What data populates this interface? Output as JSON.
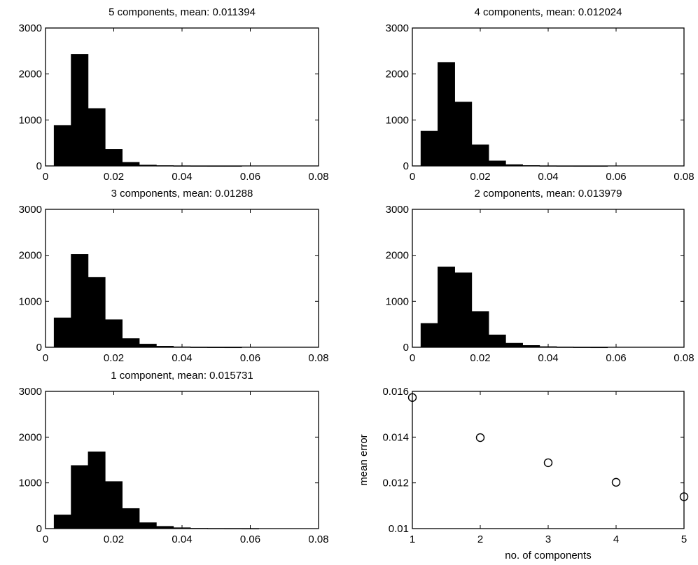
{
  "chart_data": [
    {
      "type": "bar",
      "title": "5 components, mean: 0.011394",
      "xlim": [
        0,
        0.08
      ],
      "ylim": [
        0,
        3000
      ],
      "xticks": [
        0,
        0.02,
        0.04,
        0.06,
        0.08
      ],
      "xtick_labels": [
        "0",
        "0.02",
        "0.04",
        "0.06",
        "0.08"
      ],
      "yticks": [
        0,
        1000,
        2000,
        3000
      ],
      "ytick_labels": [
        "0",
        "1000",
        "2000",
        "3000"
      ],
      "bin_width": 0.005,
      "bin_centers": [
        0.005,
        0.01,
        0.015,
        0.02,
        0.025,
        0.03,
        0.035,
        0.04,
        0.045,
        0.05,
        0.055,
        0.06,
        0.065,
        0.07,
        0.075
      ],
      "values": [
        880,
        2430,
        1250,
        360,
        80,
        20,
        8,
        4,
        2,
        1,
        1,
        0,
        0,
        0,
        0
      ]
    },
    {
      "type": "bar",
      "title": "4 components, mean: 0.012024",
      "xlim": [
        0,
        0.08
      ],
      "ylim": [
        0,
        3000
      ],
      "xticks": [
        0,
        0.02,
        0.04,
        0.06,
        0.08
      ],
      "xtick_labels": [
        "0",
        "0.02",
        "0.04",
        "0.06",
        "0.08"
      ],
      "yticks": [
        0,
        1000,
        2000,
        3000
      ],
      "ytick_labels": [
        "0",
        "1000",
        "2000",
        "3000"
      ],
      "bin_width": 0.005,
      "bin_centers": [
        0.005,
        0.01,
        0.015,
        0.02,
        0.025,
        0.03,
        0.035,
        0.04,
        0.045,
        0.05,
        0.055,
        0.06,
        0.065,
        0.07,
        0.075
      ],
      "values": [
        760,
        2250,
        1390,
        460,
        110,
        30,
        10,
        4,
        2,
        1,
        1,
        0,
        0,
        0,
        0
      ]
    },
    {
      "type": "bar",
      "title": "3 components, mean: 0.01288",
      "xlim": [
        0,
        0.08
      ],
      "ylim": [
        0,
        3000
      ],
      "xticks": [
        0,
        0.02,
        0.04,
        0.06,
        0.08
      ],
      "xtick_labels": [
        "0",
        "0.02",
        "0.04",
        "0.06",
        "0.08"
      ],
      "yticks": [
        0,
        1000,
        2000,
        3000
      ],
      "ytick_labels": [
        "0",
        "1000",
        "2000",
        "3000"
      ],
      "bin_width": 0.005,
      "bin_centers": [
        0.005,
        0.01,
        0.015,
        0.02,
        0.025,
        0.03,
        0.035,
        0.04,
        0.045,
        0.05,
        0.055,
        0.06,
        0.065,
        0.07,
        0.075
      ],
      "values": [
        640,
        2020,
        1520,
        600,
        190,
        70,
        25,
        10,
        4,
        2,
        1,
        0,
        0,
        0,
        0
      ]
    },
    {
      "type": "bar",
      "title": "2 components, mean: 0.013979",
      "xlim": [
        0,
        0.08
      ],
      "ylim": [
        0,
        3000
      ],
      "xticks": [
        0,
        0.02,
        0.04,
        0.06,
        0.08
      ],
      "xtick_labels": [
        "0",
        "0.02",
        "0.04",
        "0.06",
        "0.08"
      ],
      "yticks": [
        0,
        1000,
        2000,
        3000
      ],
      "ytick_labels": [
        "0",
        "1000",
        "2000",
        "3000"
      ],
      "bin_width": 0.005,
      "bin_centers": [
        0.005,
        0.01,
        0.015,
        0.02,
        0.025,
        0.03,
        0.035,
        0.04,
        0.045,
        0.05,
        0.055,
        0.06,
        0.065,
        0.07,
        0.075
      ],
      "values": [
        520,
        1750,
        1620,
        780,
        270,
        90,
        40,
        15,
        6,
        3,
        1,
        0,
        0,
        0,
        0
      ]
    },
    {
      "type": "bar",
      "title": "1 component, mean: 0.015731",
      "xlim": [
        0,
        0.08
      ],
      "ylim": [
        0,
        3000
      ],
      "xticks": [
        0,
        0.02,
        0.04,
        0.06,
        0.08
      ],
      "xtick_labels": [
        "0",
        "0.02",
        "0.04",
        "0.06",
        "0.08"
      ],
      "yticks": [
        0,
        1000,
        2000,
        3000
      ],
      "ytick_labels": [
        "0",
        "1000",
        "2000",
        "3000"
      ],
      "bin_width": 0.005,
      "bin_centers": [
        0.005,
        0.01,
        0.015,
        0.02,
        0.025,
        0.03,
        0.035,
        0.04,
        0.045,
        0.05,
        0.055,
        0.06,
        0.065,
        0.07,
        0.075
      ],
      "values": [
        300,
        1380,
        1680,
        1030,
        440,
        130,
        50,
        20,
        8,
        4,
        2,
        1,
        0,
        0,
        0
      ]
    },
    {
      "type": "scatter",
      "title": "",
      "xlabel": "no. of components",
      "ylabel": "mean error",
      "xlim": [
        1,
        5
      ],
      "ylim": [
        0.01,
        0.016
      ],
      "xticks": [
        1,
        2,
        3,
        4,
        5
      ],
      "xtick_labels": [
        "1",
        "2",
        "3",
        "4",
        "5"
      ],
      "yticks": [
        0.01,
        0.012,
        0.014,
        0.016
      ],
      "ytick_labels": [
        "0.01",
        "0.012",
        "0.014",
        "0.016"
      ],
      "marker": "circle-open",
      "x": [
        1,
        2,
        3,
        4,
        5
      ],
      "y": [
        0.015731,
        0.013979,
        0.01288,
        0.012024,
        0.011394
      ]
    }
  ]
}
